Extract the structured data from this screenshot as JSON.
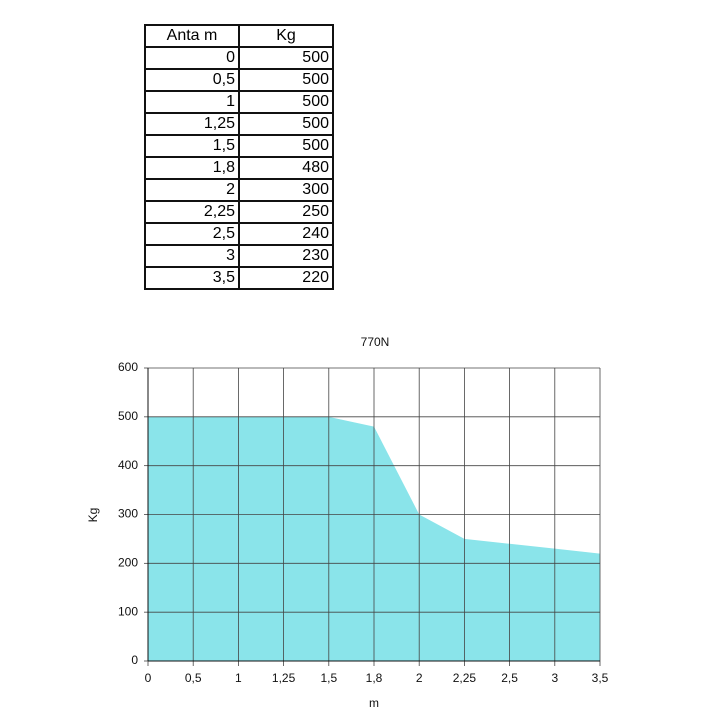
{
  "table": {
    "header": [
      "Anta m",
      "Kg"
    ],
    "rows": [
      [
        "0",
        "500"
      ],
      [
        "0,5",
        "500"
      ],
      [
        "1",
        "500"
      ],
      [
        "1,25",
        "500"
      ],
      [
        "1,5",
        "500"
      ],
      [
        "1,8",
        "480"
      ],
      [
        "2",
        "300"
      ],
      [
        "2,25",
        "250"
      ],
      [
        "2,5",
        "240"
      ],
      [
        "3",
        "230"
      ],
      [
        "3,5",
        "220"
      ]
    ]
  },
  "chart_data": {
    "type": "area",
    "title": "770N",
    "xlabel": "m",
    "ylabel": "Kg",
    "categories": [
      "0",
      "0,5",
      "1",
      "1,25",
      "1,5",
      "1,8",
      "2",
      "2,25",
      "2,5",
      "3",
      "3,5"
    ],
    "values": [
      500,
      500,
      500,
      500,
      500,
      480,
      300,
      250,
      240,
      230,
      220
    ],
    "color": "#8ae4ea",
    "ylim": [
      0,
      600
    ],
    "yticks": [
      0,
      100,
      200,
      300,
      400,
      500,
      600
    ],
    "grid": true
  }
}
